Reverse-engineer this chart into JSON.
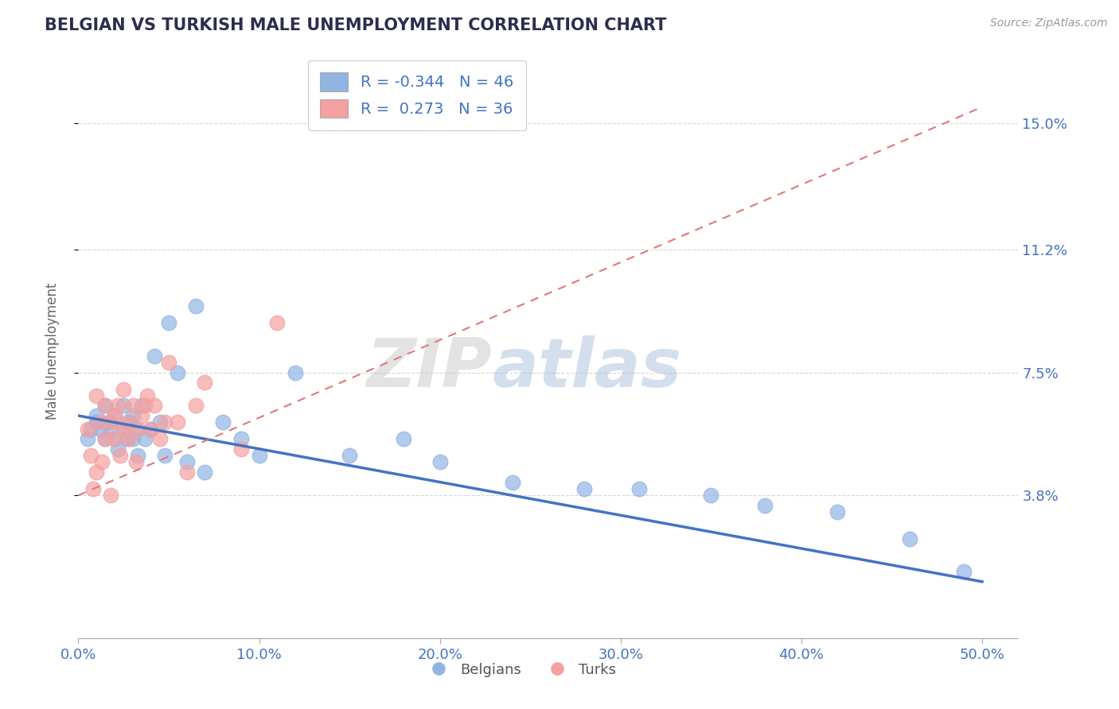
{
  "title": "BELGIAN VS TURKISH MALE UNEMPLOYMENT CORRELATION CHART",
  "source_text": "Source: ZipAtlas.com",
  "ylabel": "Male Unemployment",
  "watermark": "ZIPAtlas",
  "xlim": [
    0.0,
    0.52
  ],
  "ylim": [
    -0.005,
    0.168
  ],
  "xticks": [
    0.0,
    0.1,
    0.2,
    0.3,
    0.4,
    0.5
  ],
  "xtick_labels": [
    "0.0%",
    "10.0%",
    "20.0%",
    "30.0%",
    "40.0%",
    "50.0%"
  ],
  "ytick_labels": [
    "3.8%",
    "7.5%",
    "11.2%",
    "15.0%"
  ],
  "ytick_values": [
    0.038,
    0.075,
    0.112,
    0.15
  ],
  "color_belgians": "#92b4e3",
  "color_turks": "#f4a0a0",
  "color_line_belgians": "#4472c4",
  "color_line_turks": "#e07878",
  "color_axis_labels": "#4472c4",
  "color_title": "#2d2d4e",
  "legend_R1": "-0.344",
  "legend_N1": "46",
  "legend_R2": "0.273",
  "legend_N2": "36",
  "blue_line_x0": 0.0,
  "blue_line_y0": 0.062,
  "blue_line_x1": 0.5,
  "blue_line_y1": 0.012,
  "pink_line_x0": 0.0,
  "pink_line_y0": 0.038,
  "pink_line_x1": 0.5,
  "pink_line_y1": 0.155,
  "belgians_x": [
    0.005,
    0.007,
    0.01,
    0.01,
    0.012,
    0.015,
    0.015,
    0.017,
    0.018,
    0.02,
    0.02,
    0.022,
    0.025,
    0.025,
    0.027,
    0.028,
    0.03,
    0.03,
    0.032,
    0.033,
    0.035,
    0.037,
    0.04,
    0.042,
    0.045,
    0.048,
    0.05,
    0.055,
    0.06,
    0.065,
    0.07,
    0.08,
    0.09,
    0.1,
    0.12,
    0.15,
    0.18,
    0.2,
    0.24,
    0.28,
    0.31,
    0.35,
    0.38,
    0.42,
    0.46,
    0.49
  ],
  "belgians_y": [
    0.055,
    0.058,
    0.06,
    0.062,
    0.058,
    0.055,
    0.065,
    0.06,
    0.058,
    0.055,
    0.062,
    0.052,
    0.058,
    0.065,
    0.055,
    0.06,
    0.055,
    0.062,
    0.058,
    0.05,
    0.065,
    0.055,
    0.058,
    0.08,
    0.06,
    0.05,
    0.09,
    0.075,
    0.048,
    0.095,
    0.045,
    0.06,
    0.055,
    0.05,
    0.075,
    0.05,
    0.055,
    0.048,
    0.042,
    0.04,
    0.04,
    0.038,
    0.035,
    0.033,
    0.025,
    0.015
  ],
  "turks_x": [
    0.005,
    0.007,
    0.008,
    0.01,
    0.01,
    0.012,
    0.013,
    0.015,
    0.015,
    0.018,
    0.018,
    0.02,
    0.02,
    0.022,
    0.023,
    0.025,
    0.025,
    0.027,
    0.028,
    0.03,
    0.032,
    0.033,
    0.035,
    0.037,
    0.038,
    0.04,
    0.042,
    0.045,
    0.048,
    0.05,
    0.055,
    0.06,
    0.065,
    0.07,
    0.09,
    0.11
  ],
  "turks_y": [
    0.058,
    0.05,
    0.04,
    0.068,
    0.045,
    0.06,
    0.048,
    0.065,
    0.055,
    0.06,
    0.038,
    0.062,
    0.055,
    0.065,
    0.05,
    0.07,
    0.058,
    0.06,
    0.055,
    0.065,
    0.048,
    0.058,
    0.062,
    0.065,
    0.068,
    0.058,
    0.065,
    0.055,
    0.06,
    0.078,
    0.06,
    0.045,
    0.065,
    0.072,
    0.052,
    0.09
  ]
}
